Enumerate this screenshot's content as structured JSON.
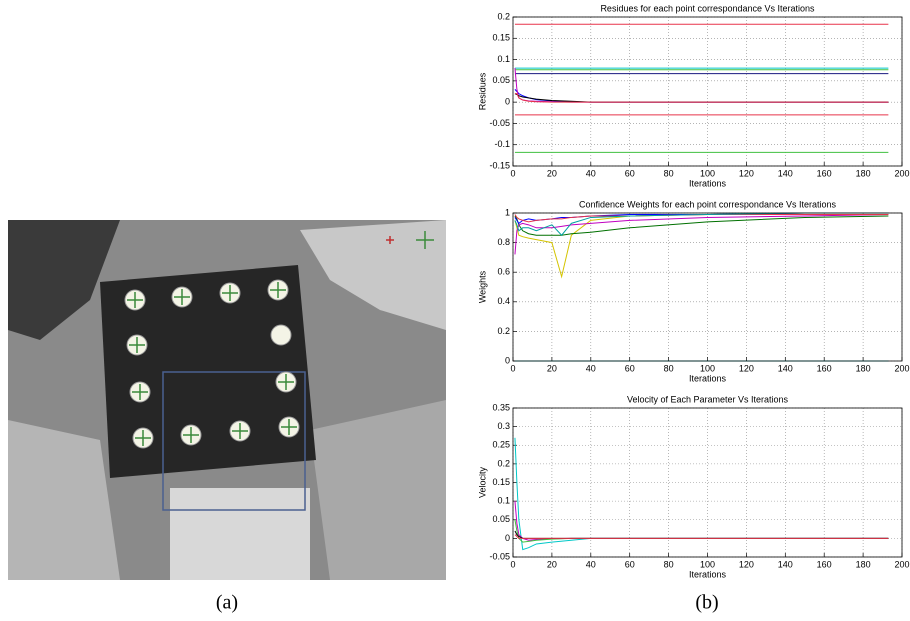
{
  "captions": [
    "(a)",
    "(b)"
  ],
  "chart_data": [
    {
      "type": "line",
      "title": "Residues for each point correspondance Vs Iterations",
      "x_label": "Iterations",
      "y_label": "Residues",
      "grid": true,
      "xlim": [
        0,
        200
      ],
      "xticks": [
        0,
        20,
        40,
        60,
        80,
        100,
        120,
        140,
        160,
        180,
        200
      ],
      "ylim": [
        -0.15,
        0.2
      ],
      "yticks": [
        -0.15,
        -0.1,
        -0.05,
        0,
        0.05,
        0.1,
        0.15,
        0.2
      ],
      "x": [
        1,
        2,
        3,
        5,
        8,
        12,
        20,
        30,
        40,
        60,
        100,
        150,
        193
      ],
      "series": [
        {
          "color": "#e8344a",
          "values": [
            0.183,
            0.183,
            0.183,
            0.183,
            0.183,
            0.183,
            0.183,
            0.183,
            0.183,
            0.183,
            0.183,
            0.183,
            0.183
          ]
        },
        {
          "color": "#00c8c8",
          "values": [
            0.08,
            0.08,
            0.08,
            0.08,
            0.08,
            0.08,
            0.08,
            0.08,
            0.08,
            0.08,
            0.08,
            0.08,
            0.08
          ]
        },
        {
          "color": "#40c040",
          "values": [
            0.076,
            0.076,
            0.076,
            0.076,
            0.076,
            0.076,
            0.076,
            0.076,
            0.076,
            0.076,
            0.076,
            0.076,
            0.076
          ]
        },
        {
          "color": "#1a1a80",
          "values": [
            0.067,
            0.067,
            0.067,
            0.067,
            0.067,
            0.067,
            0.067,
            0.067,
            0.067,
            0.067,
            0.067,
            0.067,
            0.067
          ]
        },
        {
          "color": "#e8344a",
          "values": [
            -0.03,
            -0.03,
            -0.03,
            -0.03,
            -0.03,
            -0.03,
            -0.03,
            -0.03,
            -0.03,
            -0.03,
            -0.03,
            -0.03,
            -0.03
          ]
        },
        {
          "color": "#40c040",
          "values": [
            -0.118,
            -0.118,
            -0.118,
            -0.118,
            -0.118,
            -0.118,
            -0.118,
            -0.118,
            -0.118,
            -0.118,
            -0.118,
            -0.118,
            -0.118
          ]
        },
        {
          "color": "#0000ff",
          "values": [
            0.03,
            0.025,
            0.02,
            0.015,
            0.01,
            0.006,
            0.003,
            0.001,
            0,
            0,
            0,
            0,
            0
          ]
        },
        {
          "color": "#c000c0",
          "values": [
            0.08,
            0.03,
            0.01,
            0.005,
            0.003,
            0.002,
            0.001,
            0,
            0,
            0,
            0,
            0,
            0
          ]
        },
        {
          "color": "#000000",
          "values": [
            0.02,
            0.018,
            0.015,
            0.012,
            0.01,
            0.007,
            0.004,
            0.002,
            0,
            0,
            0,
            0,
            0
          ]
        },
        {
          "color": "#e8344a",
          "values": [
            0.02,
            0.02,
            0.01,
            0.005,
            0.002,
            0.001,
            0,
            0,
            0,
            0,
            0,
            0,
            0
          ]
        }
      ]
    },
    {
      "type": "line",
      "title": "Confidence Weights for each point correspondance Vs Iterations",
      "x_label": "Iterations",
      "y_label": "Weights",
      "grid": true,
      "xlim": [
        0,
        200
      ],
      "xticks": [
        0,
        20,
        40,
        60,
        80,
        100,
        120,
        140,
        160,
        180,
        200
      ],
      "ylim": [
        0,
        1
      ],
      "yticks": [
        0,
        0.2,
        0.4,
        0.6,
        0.8,
        1
      ],
      "x": [
        1,
        2,
        3,
        5,
        8,
        12,
        20,
        25,
        30,
        40,
        60,
        100,
        150,
        193
      ],
      "series": [
        {
          "color": "#00c8c8",
          "values": [
            0,
            0,
            0,
            0,
            0,
            0,
            0,
            0,
            0,
            0,
            0,
            0,
            0,
            0
          ]
        },
        {
          "color": "#d4c400",
          "values": [
            0.95,
            0.9,
            0.85,
            0.84,
            0.83,
            0.82,
            0.8,
            0.57,
            0.85,
            0.95,
            0.98,
            0.99,
            1,
            1
          ]
        },
        {
          "color": "#007000",
          "values": [
            0.98,
            0.96,
            0.92,
            0.88,
            0.86,
            0.85,
            0.85,
            0.85,
            0.86,
            0.87,
            0.9,
            0.94,
            0.97,
            0.98
          ]
        },
        {
          "color": "#c000c0",
          "values": [
            0.72,
            0.88,
            0.92,
            0.93,
            0.92,
            0.9,
            0.9,
            0.91,
            0.92,
            0.93,
            0.95,
            0.97,
            0.98,
            0.99
          ]
        },
        {
          "color": "#0000ff",
          "values": [
            0.97,
            0.95,
            0.93,
            0.95,
            0.96,
            0.95,
            0.96,
            0.97,
            0.97,
            0.98,
            0.99,
            0.99,
            1,
            1
          ]
        },
        {
          "color": "#e8344a",
          "values": [
            0.99,
            0.97,
            0.96,
            0.95,
            0.94,
            0.95,
            0.96,
            0.96,
            0.97,
            0.98,
            0.98,
            0.99,
            0.99,
            0.99
          ]
        },
        {
          "color": "#00a0a0",
          "values": [
            0.95,
            0.92,
            0.88,
            0.9,
            0.9,
            0.88,
            0.92,
            0.85,
            0.93,
            0.97,
            0.98,
            0.99,
            1,
            1
          ]
        }
      ]
    },
    {
      "type": "line",
      "title": "Velocity of Each Parameter Vs Iterations",
      "x_label": "Iterations",
      "y_label": "Velocity",
      "grid": true,
      "xlim": [
        0,
        200
      ],
      "xticks": [
        0,
        20,
        40,
        60,
        80,
        100,
        120,
        140,
        160,
        180,
        200
      ],
      "ylim": [
        -0.05,
        0.35
      ],
      "yticks": [
        -0.05,
        0,
        0.05,
        0.1,
        0.15,
        0.2,
        0.25,
        0.3,
        0.35
      ],
      "x": [
        1,
        2,
        3,
        5,
        8,
        12,
        20,
        30,
        40,
        60,
        100,
        150,
        193
      ],
      "series": [
        {
          "color": "#00c8c8",
          "values": [
            0.27,
            0.15,
            0.05,
            -0.03,
            -0.025,
            -0.015,
            -0.01,
            -0.005,
            0,
            0,
            0,
            0,
            0
          ]
        },
        {
          "color": "#c000c0",
          "values": [
            0.1,
            0.04,
            0.01,
            0,
            -0.005,
            -0.003,
            -0.001,
            0,
            0,
            0,
            0,
            0,
            0
          ]
        },
        {
          "color": "#40c040",
          "values": [
            0.05,
            0.02,
            0,
            -0.01,
            -0.008,
            -0.005,
            -0.002,
            0,
            0,
            0,
            0,
            0,
            0
          ]
        },
        {
          "color": "#000000",
          "values": [
            0.02,
            0.01,
            0.005,
            0,
            0,
            0,
            0,
            0,
            0,
            0,
            0,
            0,
            0
          ]
        },
        {
          "color": "#e8344a",
          "values": [
            0.01,
            0.005,
            0,
            0,
            0,
            0,
            0,
            0,
            0,
            0,
            0,
            0,
            0
          ]
        }
      ]
    }
  ]
}
